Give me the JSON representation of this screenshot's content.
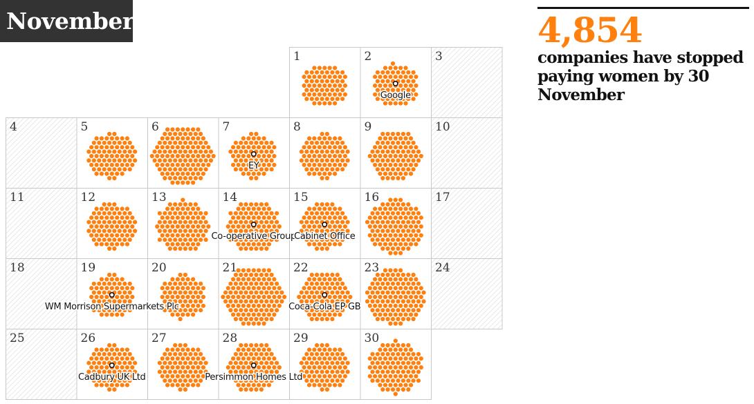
{
  "header": {
    "month": "November"
  },
  "stat": {
    "number": "4,854",
    "text": "companies have stopped paying women by 30 November"
  },
  "colors": {
    "accent": "#ff7f0f",
    "weekend_hatch": "#d8d8d8",
    "grid_border": "#c8c8c8",
    "badge_bg": "#333333"
  },
  "chart_data": {
    "type": "calendar-dot-grid",
    "month": "November",
    "weekend_days": [
      3,
      4,
      10,
      11,
      17,
      18,
      24,
      25
    ],
    "days": [
      {
        "day": 1,
        "companies": 69,
        "highlight": ""
      },
      {
        "day": 2,
        "companies": 70,
        "highlight": "Google"
      },
      {
        "day": 3,
        "companies": 0,
        "highlight": ""
      },
      {
        "day": 4,
        "companies": 0,
        "highlight": ""
      },
      {
        "day": 5,
        "companies": 80,
        "highlight": ""
      },
      {
        "day": 6,
        "companies": 125,
        "highlight": ""
      },
      {
        "day": 7,
        "companies": 74,
        "highlight": "EY"
      },
      {
        "day": 8,
        "companies": 80,
        "highlight": ""
      },
      {
        "day": 9,
        "companies": 90,
        "highlight": ""
      },
      {
        "day": 10,
        "companies": 0,
        "highlight": ""
      },
      {
        "day": 11,
        "companies": 0,
        "highlight": ""
      },
      {
        "day": 12,
        "companies": 82,
        "highlight": ""
      },
      {
        "day": 13,
        "companies": 96,
        "highlight": ""
      },
      {
        "day": 14,
        "companies": 95,
        "highlight": "Co-operative Group"
      },
      {
        "day": 15,
        "companies": 84,
        "highlight": "Cabinet Office"
      },
      {
        "day": 16,
        "companies": 110,
        "highlight": ""
      },
      {
        "day": 17,
        "companies": 0,
        "highlight": ""
      },
      {
        "day": 18,
        "companies": 0,
        "highlight": ""
      },
      {
        "day": 19,
        "companies": 71,
        "highlight": "WM Morrison Supermarkets Plc"
      },
      {
        "day": 20,
        "companies": 72,
        "highlight": ""
      },
      {
        "day": 21,
        "companies": 125,
        "highlight": ""
      },
      {
        "day": 22,
        "companies": 90,
        "highlight": "Coca-Cola EP GB"
      },
      {
        "day": 23,
        "companies": 118,
        "highlight": ""
      },
      {
        "day": 24,
        "companies": 0,
        "highlight": ""
      },
      {
        "day": 25,
        "companies": 0,
        "highlight": ""
      },
      {
        "day": 26,
        "companies": 81,
        "highlight": "Cadbury UK Ltd"
      },
      {
        "day": 27,
        "companies": 82,
        "highlight": ""
      },
      {
        "day": 28,
        "companies": 90,
        "highlight": "Persimmon Homes Ltd"
      },
      {
        "day": 29,
        "companies": 82,
        "highlight": ""
      },
      {
        "day": 30,
        "companies": 100,
        "highlight": ""
      }
    ]
  }
}
